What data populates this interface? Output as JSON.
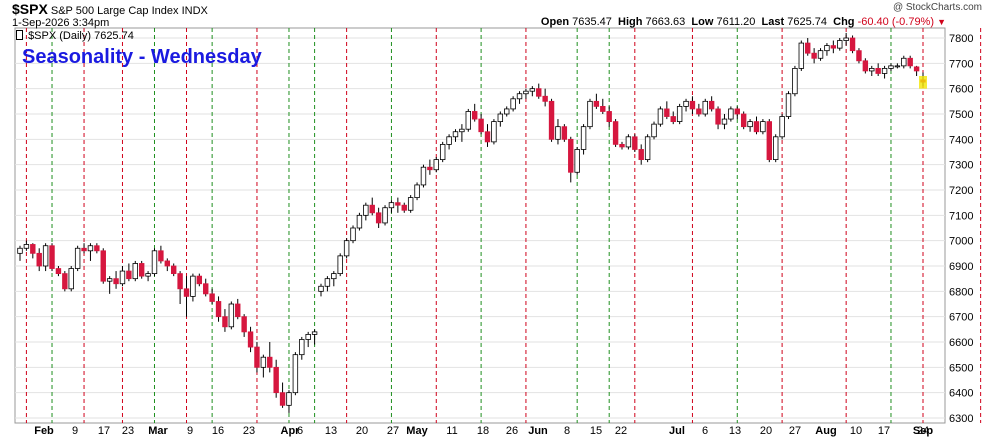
{
  "header": {
    "symbol": "$SPX",
    "name": "S&P 500 Large Cap Index",
    "exchange": "INDX",
    "date": "1-Sep-2026 3:34pm",
    "open_label": "Open",
    "open": "7635.47",
    "high_label": "High",
    "high": "7663.63",
    "low_label": "Low",
    "low": "7611.20",
    "last_label": "Last",
    "last": "7625.74",
    "chg_label": "Chg",
    "chg": "-60.40 (-0.79%)",
    "watermark": "@ StockCharts.com"
  },
  "legend": {
    "label": "$SPX (Daily) 7625.74"
  },
  "overlay": {
    "title": "Seasonality - Wednesday"
  },
  "colors": {
    "up": "#ffffff",
    "down": "#d6173f",
    "outline": "#000000",
    "grid": "#e2e2e2",
    "red_line": "#d0021b",
    "green_line": "#1f8f1f",
    "title": "#1a1ae0",
    "last_marker": "#f2e600"
  },
  "chart_data": {
    "type": "candlestick",
    "ylim": [
      6300,
      7800
    ],
    "y_ticks": [
      6300,
      6400,
      6500,
      6600,
      6700,
      6800,
      6900,
      7000,
      7100,
      7200,
      7300,
      7400,
      7500,
      7600,
      7700,
      7800
    ],
    "x_labels": [
      "Feb",
      "9",
      "17",
      "23",
      "Mar",
      "9",
      "16",
      "23",
      "Apr",
      "6",
      "13",
      "20",
      "27",
      "May",
      "11",
      "18",
      "26",
      "Jun",
      "8",
      "15",
      "22",
      "Jul",
      "6",
      "13",
      "20",
      "27",
      "Aug",
      "10",
      "17",
      "24",
      "Sep"
    ],
    "ohlc": [
      [
        6950,
        6980,
        6920,
        6970
      ],
      [
        6970,
        7000,
        6960,
        6985
      ],
      [
        6985,
        6990,
        6930,
        6950
      ],
      [
        6950,
        6970,
        6880,
        6900
      ],
      [
        6900,
        6990,
        6880,
        6980
      ],
      [
        6980,
        6990,
        6880,
        6890
      ],
      [
        6890,
        6900,
        6860,
        6870
      ],
      [
        6870,
        6880,
        6800,
        6810
      ],
      [
        6810,
        6900,
        6800,
        6890
      ],
      [
        6890,
        6980,
        6880,
        6970
      ],
      [
        6970,
        6990,
        6950,
        6960
      ],
      [
        6960,
        6990,
        6920,
        6980
      ],
      [
        6980,
        6990,
        6950,
        6960
      ],
      [
        6960,
        6970,
        6830,
        6840
      ],
      [
        6840,
        6860,
        6790,
        6850
      ],
      [
        6850,
        6880,
        6810,
        6830
      ],
      [
        6830,
        6900,
        6820,
        6880
      ],
      [
        6880,
        6910,
        6840,
        6850
      ],
      [
        6850,
        6920,
        6840,
        6910
      ],
      [
        6910,
        6920,
        6850,
        6860
      ],
      [
        6860,
        6880,
        6840,
        6870
      ],
      [
        6870,
        6970,
        6860,
        6960
      ],
      [
        6960,
        6980,
        6910,
        6920
      ],
      [
        6920,
        6930,
        6880,
        6900
      ],
      [
        6900,
        6910,
        6860,
        6870
      ],
      [
        6870,
        6880,
        6750,
        6810
      ],
      [
        6810,
        6860,
        6700,
        6780
      ],
      [
        6780,
        6870,
        6760,
        6860
      ],
      [
        6860,
        6870,
        6820,
        6830
      ],
      [
        6830,
        6850,
        6780,
        6790
      ],
      [
        6790,
        6810,
        6750,
        6760
      ],
      [
        6760,
        6780,
        6680,
        6700
      ],
      [
        6700,
        6730,
        6640,
        6660
      ],
      [
        6660,
        6760,
        6650,
        6750
      ],
      [
        6750,
        6770,
        6690,
        6700
      ],
      [
        6700,
        6710,
        6620,
        6640
      ],
      [
        6640,
        6660,
        6560,
        6580
      ],
      [
        6580,
        6600,
        6480,
        6500
      ],
      [
        6500,
        6550,
        6460,
        6540
      ],
      [
        6540,
        6600,
        6480,
        6500
      ],
      [
        6500,
        6530,
        6380,
        6400
      ],
      [
        6400,
        6440,
        6340,
        6350
      ],
      [
        6350,
        6410,
        6320,
        6400
      ],
      [
        6400,
        6560,
        6390,
        6550
      ],
      [
        6550,
        6620,
        6530,
        6610
      ],
      [
        6610,
        6640,
        6580,
        6630
      ],
      [
        6630,
        6650,
        6590,
        6640
      ],
      [
        6800,
        6830,
        6780,
        6820
      ],
      [
        6820,
        6860,
        6800,
        6850
      ],
      [
        6850,
        6880,
        6820,
        6870
      ],
      [
        6870,
        6950,
        6860,
        6940
      ],
      [
        6940,
        7010,
        6930,
        7000
      ],
      [
        7000,
        7060,
        6990,
        7050
      ],
      [
        7050,
        7110,
        7040,
        7100
      ],
      [
        7100,
        7150,
        7080,
        7140
      ],
      [
        7140,
        7170,
        7100,
        7110
      ],
      [
        7110,
        7130,
        7050,
        7070
      ],
      [
        7070,
        7140,
        7060,
        7130
      ],
      [
        7130,
        7160,
        7110,
        7150
      ],
      [
        7150,
        7170,
        7110,
        7140
      ],
      [
        7140,
        7150,
        7110,
        7120
      ],
      [
        7120,
        7180,
        7110,
        7170
      ],
      [
        7170,
        7230,
        7160,
        7220
      ],
      [
        7220,
        7300,
        7210,
        7290
      ],
      [
        7290,
        7320,
        7260,
        7280
      ],
      [
        7280,
        7330,
        7270,
        7320
      ],
      [
        7320,
        7390,
        7310,
        7380
      ],
      [
        7380,
        7420,
        7360,
        7410
      ],
      [
        7410,
        7440,
        7390,
        7430
      ],
      [
        7430,
        7460,
        7390,
        7440
      ],
      [
        7440,
        7520,
        7430,
        7510
      ],
      [
        7510,
        7540,
        7470,
        7480
      ],
      [
        7480,
        7500,
        7420,
        7430
      ],
      [
        7430,
        7460,
        7370,
        7390
      ],
      [
        7390,
        7480,
        7380,
        7470
      ],
      [
        7470,
        7510,
        7450,
        7500
      ],
      [
        7500,
        7530,
        7490,
        7520
      ],
      [
        7520,
        7570,
        7510,
        7560
      ],
      [
        7560,
        7590,
        7540,
        7580
      ],
      [
        7580,
        7600,
        7560,
        7590
      ],
      [
        7590,
        7610,
        7570,
        7600
      ],
      [
        7600,
        7620,
        7560,
        7570
      ],
      [
        7570,
        7600,
        7530,
        7550
      ],
      [
        7550,
        7560,
        7390,
        7400
      ],
      [
        7400,
        7480,
        7380,
        7450
      ],
      [
        7450,
        7460,
        7390,
        7400
      ],
      [
        7400,
        7410,
        7230,
        7270
      ],
      [
        7270,
        7370,
        7260,
        7360
      ],
      [
        7360,
        7460,
        7340,
        7450
      ],
      [
        7450,
        7560,
        7440,
        7550
      ],
      [
        7550,
        7580,
        7520,
        7530
      ],
      [
        7530,
        7560,
        7500,
        7510
      ],
      [
        7510,
        7530,
        7450,
        7470
      ],
      [
        7470,
        7480,
        7370,
        7380
      ],
      [
        7380,
        7390,
        7360,
        7370
      ],
      [
        7370,
        7420,
        7360,
        7410
      ],
      [
        7410,
        7420,
        7350,
        7360
      ],
      [
        7360,
        7380,
        7300,
        7320
      ],
      [
        7320,
        7420,
        7310,
        7410
      ],
      [
        7410,
        7470,
        7400,
        7460
      ],
      [
        7460,
        7530,
        7450,
        7520
      ],
      [
        7520,
        7550,
        7480,
        7490
      ],
      [
        7490,
        7510,
        7460,
        7470
      ],
      [
        7470,
        7540,
        7460,
        7530
      ],
      [
        7530,
        7560,
        7510,
        7550
      ],
      [
        7550,
        7570,
        7500,
        7520
      ],
      [
        7520,
        7540,
        7490,
        7500
      ],
      [
        7500,
        7560,
        7490,
        7550
      ],
      [
        7550,
        7570,
        7510,
        7520
      ],
      [
        7520,
        7530,
        7440,
        7460
      ],
      [
        7460,
        7500,
        7440,
        7480
      ],
      [
        7480,
        7530,
        7470,
        7520
      ],
      [
        7520,
        7530,
        7480,
        7500
      ],
      [
        7500,
        7510,
        7440,
        7450
      ],
      [
        7450,
        7480,
        7430,
        7470
      ],
      [
        7470,
        7490,
        7420,
        7430
      ],
      [
        7430,
        7480,
        7420,
        7470
      ],
      [
        7470,
        7480,
        7310,
        7320
      ],
      [
        7320,
        7420,
        7310,
        7410
      ],
      [
        7410,
        7500,
        7400,
        7490
      ],
      [
        7490,
        7590,
        7480,
        7580
      ],
      [
        7580,
        7690,
        7570,
        7680
      ],
      [
        7680,
        7790,
        7670,
        7780
      ],
      [
        7780,
        7800,
        7730,
        7740
      ],
      [
        7740,
        7760,
        7700,
        7720
      ],
      [
        7720,
        7760,
        7710,
        7750
      ],
      [
        7750,
        7780,
        7730,
        7770
      ],
      [
        7770,
        7790,
        7740,
        7760
      ],
      [
        7760,
        7800,
        7750,
        7790
      ],
      [
        7790,
        7820,
        7770,
        7800
      ],
      [
        7800,
        7810,
        7740,
        7750
      ],
      [
        7750,
        7760,
        7700,
        7710
      ],
      [
        7710,
        7720,
        7660,
        7670
      ],
      [
        7670,
        7690,
        7650,
        7680
      ],
      [
        7680,
        7700,
        7650,
        7660
      ],
      [
        7660,
        7690,
        7640,
        7680
      ],
      [
        7680,
        7700,
        7670,
        7690
      ],
      [
        7690,
        7700,
        7680,
        7690
      ],
      [
        7690,
        7730,
        7680,
        7720
      ],
      [
        7720,
        7730,
        7680,
        7690
      ],
      [
        7686,
        7690,
        7650,
        7670
      ],
      [
        7635,
        7664,
        7611,
        7626
      ]
    ],
    "red_lines": [
      1,
      10,
      16,
      26,
      37,
      51,
      65,
      79,
      96,
      105,
      119,
      129,
      141,
      150
    ],
    "green_lines": [
      5,
      21,
      30,
      42,
      46,
      58,
      72,
      87,
      92,
      112,
      136
    ]
  }
}
